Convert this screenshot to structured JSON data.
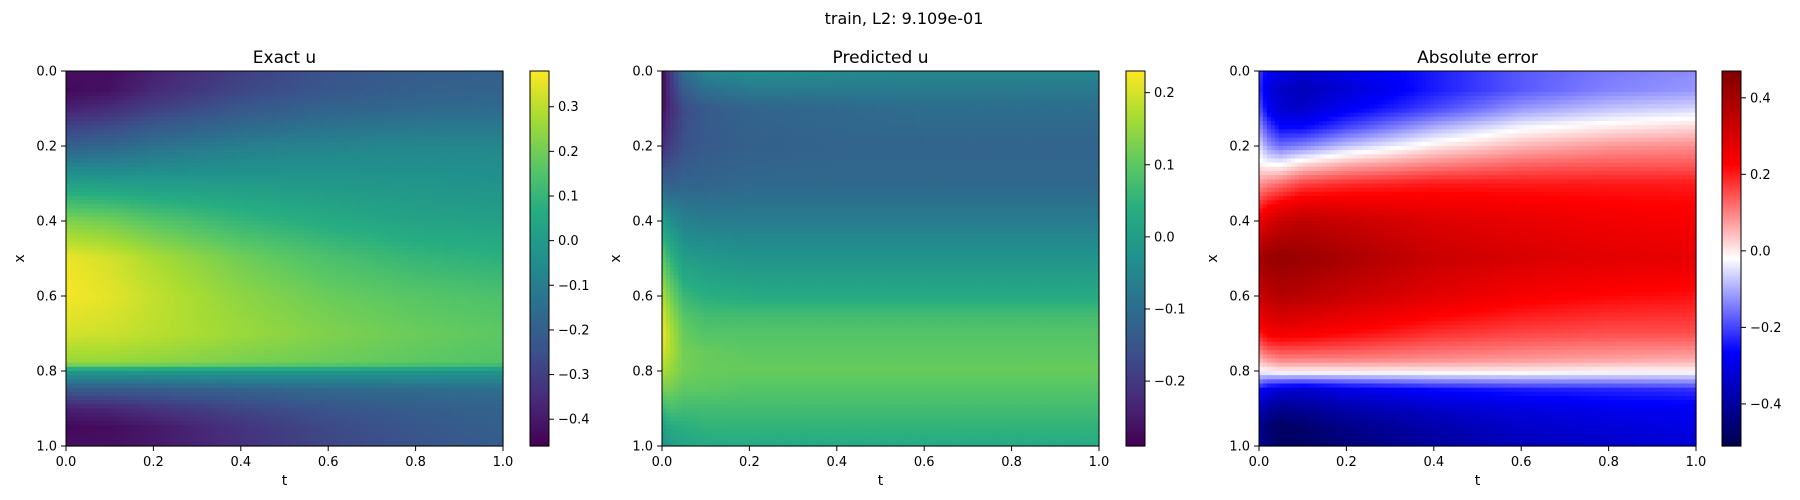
{
  "figure": {
    "suptitle": "train, L2: 9.109e-01"
  },
  "chart_data": [
    {
      "type": "heatmap",
      "title": "Exact u",
      "xlabel": "t",
      "ylabel": "x",
      "xlim": [
        0.0,
        1.0
      ],
      "ylim": [
        1.0,
        0.0
      ],
      "xticks": [
        "0.0",
        "0.2",
        "0.4",
        "0.6",
        "0.8",
        "1.0"
      ],
      "yticks": [
        "0.0",
        "0.2",
        "0.4",
        "0.6",
        "0.8",
        "1.0"
      ],
      "colormap": "viridis",
      "clim": [
        -0.46,
        0.38
      ],
      "colorbar_ticks": [
        "0.3",
        "0.2",
        "0.1",
        "0.0",
        "−0.1",
        "−0.2",
        "−0.3",
        "−0.4"
      ],
      "t": [
        0.0,
        0.1,
        0.2,
        0.4,
        0.6,
        0.8,
        1.0
      ],
      "x": [
        0.0,
        0.05,
        0.1,
        0.2,
        0.3,
        0.4,
        0.5,
        0.6,
        0.7,
        0.78,
        0.8,
        0.85,
        0.9,
        0.95,
        1.0
      ],
      "values": [
        [
          -0.42,
          -0.43,
          -0.38,
          -0.3,
          -0.24,
          -0.21,
          -0.2
        ],
        [
          -0.44,
          -0.42,
          -0.36,
          -0.28,
          -0.23,
          -0.2,
          -0.19
        ],
        [
          -0.38,
          -0.35,
          -0.3,
          -0.23,
          -0.19,
          -0.17,
          -0.16
        ],
        [
          -0.2,
          -0.18,
          -0.14,
          -0.1,
          -0.08,
          -0.07,
          -0.07
        ],
        [
          0.02,
          0.01,
          0.0,
          0.0,
          -0.01,
          -0.02,
          -0.03
        ],
        [
          0.22,
          0.2,
          0.16,
          0.1,
          0.06,
          0.03,
          0.02
        ],
        [
          0.36,
          0.33,
          0.28,
          0.2,
          0.14,
          0.1,
          0.08
        ],
        [
          0.37,
          0.35,
          0.31,
          0.24,
          0.19,
          0.16,
          0.14
        ],
        [
          0.33,
          0.32,
          0.3,
          0.26,
          0.22,
          0.19,
          0.17
        ],
        [
          0.25,
          0.25,
          0.24,
          0.21,
          0.19,
          0.17,
          0.15
        ],
        [
          0.0,
          0.0,
          0.0,
          0.0,
          0.0,
          -0.01,
          -0.02
        ],
        [
          -0.22,
          -0.22,
          -0.21,
          -0.19,
          -0.17,
          -0.16,
          -0.15
        ],
        [
          -0.38,
          -0.36,
          -0.33,
          -0.28,
          -0.24,
          -0.21,
          -0.19
        ],
        [
          -0.44,
          -0.43,
          -0.4,
          -0.33,
          -0.27,
          -0.23,
          -0.2
        ],
        [
          -0.42,
          -0.42,
          -0.4,
          -0.34,
          -0.28,
          -0.24,
          -0.21
        ]
      ]
    },
    {
      "type": "heatmap",
      "title": "Predicted u",
      "xlabel": "t",
      "ylabel": "x",
      "xlim": [
        0.0,
        1.0
      ],
      "ylim": [
        1.0,
        0.0
      ],
      "xticks": [
        "0.0",
        "0.2",
        "0.4",
        "0.6",
        "0.8",
        "1.0"
      ],
      "yticks": [
        "0.0",
        "0.2",
        "0.4",
        "0.6",
        "0.8",
        "1.0"
      ],
      "colormap": "viridis",
      "clim": [
        -0.29,
        0.23
      ],
      "colorbar_ticks": [
        "0.2",
        "0.1",
        "0.0",
        "−0.1",
        "−0.2"
      ],
      "t": [
        0.0,
        0.02,
        0.05,
        0.1,
        0.2,
        0.4,
        0.6,
        0.8,
        1.0
      ],
      "x": [
        0.0,
        0.1,
        0.2,
        0.3,
        0.4,
        0.5,
        0.6,
        0.65,
        0.7,
        0.75,
        0.8,
        0.85,
        0.9,
        0.95,
        1.0
      ],
      "values": [
        [
          -0.28,
          -0.2,
          -0.1,
          -0.05,
          -0.03,
          -0.04,
          -0.05,
          -0.05,
          -0.05
        ],
        [
          -0.27,
          -0.22,
          -0.17,
          -0.14,
          -0.12,
          -0.11,
          -0.1,
          -0.1,
          -0.1
        ],
        [
          -0.22,
          -0.19,
          -0.16,
          -0.14,
          -0.13,
          -0.12,
          -0.12,
          -0.12,
          -0.12
        ],
        [
          -0.12,
          -0.13,
          -0.12,
          -0.12,
          -0.11,
          -0.11,
          -0.11,
          -0.11,
          -0.11
        ],
        [
          0.0,
          -0.03,
          -0.06,
          -0.07,
          -0.07,
          -0.07,
          -0.07,
          -0.07,
          -0.07
        ],
        [
          0.1,
          0.05,
          0.0,
          -0.01,
          -0.02,
          -0.02,
          -0.02,
          -0.02,
          -0.02
        ],
        [
          0.17,
          0.12,
          0.06,
          0.04,
          0.03,
          0.03,
          0.03,
          0.03,
          0.03
        ],
        [
          0.2,
          0.15,
          0.09,
          0.07,
          0.07,
          0.07,
          0.07,
          0.07,
          0.07
        ],
        [
          0.22,
          0.17,
          0.11,
          0.09,
          0.09,
          0.09,
          0.09,
          0.09,
          0.09
        ],
        [
          0.2,
          0.17,
          0.12,
          0.11,
          0.1,
          0.1,
          0.1,
          0.1,
          0.1
        ],
        [
          0.17,
          0.15,
          0.12,
          0.11,
          0.11,
          0.11,
          0.11,
          0.11,
          0.11
        ],
        [
          0.12,
          0.12,
          0.1,
          0.1,
          0.09,
          0.09,
          0.09,
          0.09,
          0.09
        ],
        [
          0.06,
          0.08,
          0.07,
          0.07,
          0.07,
          0.07,
          0.07,
          0.07,
          0.07
        ],
        [
          0.0,
          0.03,
          0.04,
          0.05,
          0.05,
          0.05,
          0.05,
          0.05,
          0.05
        ],
        [
          -0.03,
          0.0,
          0.02,
          0.03,
          0.03,
          0.03,
          0.03,
          0.03,
          0.03
        ]
      ]
    },
    {
      "type": "heatmap",
      "title": "Absolute error",
      "xlabel": "t",
      "ylabel": "x",
      "xlim": [
        0.0,
        1.0
      ],
      "ylim": [
        1.0,
        0.0
      ],
      "xticks": [
        "0.0",
        "0.2",
        "0.4",
        "0.6",
        "0.8",
        "1.0"
      ],
      "yticks": [
        "0.0",
        "0.2",
        "0.4",
        "0.6",
        "0.8",
        "1.0"
      ],
      "colormap": "seismic",
      "clim": [
        -0.51,
        0.47
      ],
      "colorbar_ticks": [
        "0.4",
        "0.2",
        "0.0",
        "−0.2",
        "−0.4"
      ],
      "t": [
        0.0,
        0.02,
        0.05,
        0.1,
        0.2,
        0.4,
        0.6,
        0.8,
        1.0
      ],
      "x": [
        0.0,
        0.05,
        0.1,
        0.15,
        0.2,
        0.25,
        0.3,
        0.4,
        0.5,
        0.6,
        0.7,
        0.77,
        0.8,
        0.85,
        0.9,
        0.95,
        1.0
      ],
      "values": [
        [
          -0.2,
          -0.28,
          -0.3,
          -0.33,
          -0.3,
          -0.24,
          -0.18,
          -0.15,
          -0.13
        ],
        [
          -0.22,
          -0.3,
          -0.34,
          -0.36,
          -0.32,
          -0.24,
          -0.18,
          -0.14,
          -0.12
        ],
        [
          -0.18,
          -0.28,
          -0.33,
          -0.34,
          -0.28,
          -0.2,
          -0.12,
          -0.08,
          -0.06
        ],
        [
          -0.12,
          -0.2,
          -0.26,
          -0.26,
          -0.2,
          -0.1,
          -0.03,
          0.0,
          0.02
        ],
        [
          -0.05,
          -0.12,
          -0.16,
          -0.14,
          -0.08,
          0.0,
          0.05,
          0.08,
          0.09
        ],
        [
          0.0,
          -0.02,
          -0.02,
          0.02,
          0.06,
          0.1,
          0.13,
          0.14,
          0.14
        ],
        [
          0.08,
          0.1,
          0.12,
          0.16,
          0.18,
          0.2,
          0.2,
          0.2,
          0.2
        ],
        [
          0.25,
          0.3,
          0.33,
          0.35,
          0.33,
          0.29,
          0.27,
          0.25,
          0.24
        ],
        [
          0.4,
          0.42,
          0.43,
          0.42,
          0.39,
          0.33,
          0.3,
          0.28,
          0.27
        ],
        [
          0.32,
          0.35,
          0.37,
          0.36,
          0.33,
          0.28,
          0.24,
          0.22,
          0.21
        ],
        [
          0.2,
          0.24,
          0.25,
          0.24,
          0.22,
          0.18,
          0.16,
          0.15,
          0.15
        ],
        [
          0.05,
          0.08,
          0.1,
          0.1,
          0.1,
          0.09,
          0.08,
          0.07,
          0.06
        ],
        [
          -0.02,
          -0.01,
          0.0,
          0.0,
          0.0,
          0.0,
          0.0,
          -0.01,
          -0.01
        ],
        [
          -0.25,
          -0.3,
          -0.32,
          -0.33,
          -0.3,
          -0.26,
          -0.24,
          -0.23,
          -0.22
        ],
        [
          -0.35,
          -0.4,
          -0.42,
          -0.41,
          -0.38,
          -0.34,
          -0.31,
          -0.29,
          -0.28
        ],
        [
          -0.42,
          -0.46,
          -0.48,
          -0.47,
          -0.43,
          -0.38,
          -0.34,
          -0.32,
          -0.3
        ],
        [
          -0.4,
          -0.45,
          -0.48,
          -0.48,
          -0.45,
          -0.4,
          -0.36,
          -0.34,
          -0.32
        ]
      ]
    }
  ]
}
